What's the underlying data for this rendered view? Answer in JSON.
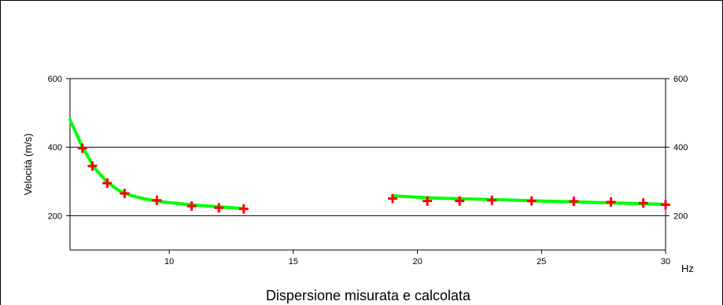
{
  "chart_data": {
    "type": "scatter",
    "title": "Dispersione misurata e calcolata",
    "xlabel": "Hz",
    "ylabel": "Velocità (m/s)",
    "xlim": [
      6,
      30
    ],
    "ylim": [
      100,
      600
    ],
    "x_ticks": [
      10,
      15,
      20,
      25,
      30
    ],
    "y_ticks": [
      200,
      400,
      600
    ],
    "grid": "horizontal",
    "colors": {
      "measured": "#ff0000",
      "calculated": "#00ff00",
      "axis": "#000000"
    },
    "series": [
      {
        "kind": "points",
        "marker": "plus",
        "x": [
          6.5,
          6.9,
          7.5,
          8.2,
          9.5,
          10.9,
          12.0,
          13.0,
          19.0,
          20.4,
          21.7,
          23.0,
          24.6,
          26.3,
          27.8,
          29.1,
          30.0
        ],
        "y": [
          397,
          345,
          295,
          265,
          245,
          228,
          223,
          220,
          250,
          243,
          243,
          245,
          243,
          242,
          240,
          237,
          232
        ]
      },
      {
        "kind": "curve",
        "x": [
          6.0,
          6.5,
          7.0,
          7.5,
          8.0,
          8.5,
          9.0,
          9.5,
          10.0,
          11.0,
          12.0,
          13.0
        ],
        "y": [
          480,
          400,
          338,
          298,
          272,
          258,
          249,
          243,
          238,
          231,
          226,
          221
        ]
      },
      {
        "kind": "curve",
        "x": [
          19.0,
          20.0,
          21.0,
          22.0,
          23.0,
          24.0,
          25.0,
          26.0,
          27.0,
          28.0,
          29.0,
          30.0
        ],
        "y": [
          258,
          254,
          251,
          249,
          247,
          245,
          243,
          241,
          239,
          237,
          235,
          233
        ]
      }
    ]
  }
}
